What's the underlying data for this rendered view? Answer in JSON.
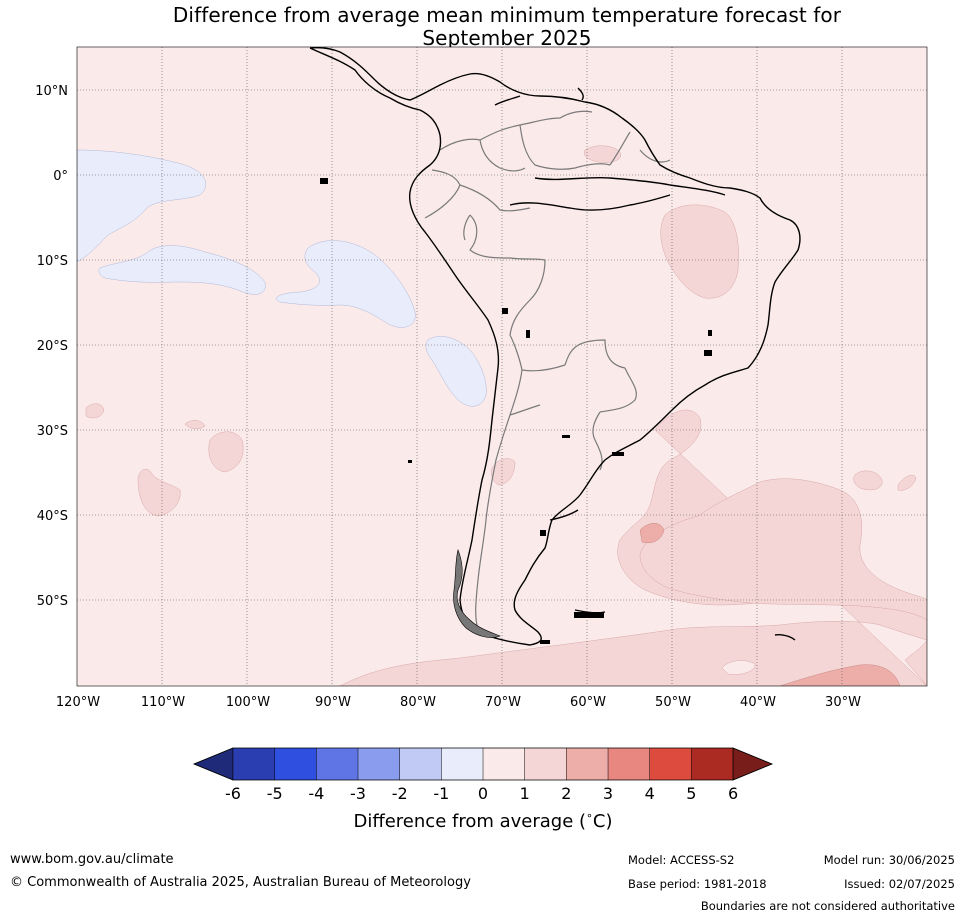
{
  "title": {
    "line1": "Difference from average mean minimum temperature forecast for",
    "line2": "September 2025"
  },
  "map": {
    "lat_labels": [
      "10°N",
      "0°",
      "10°S",
      "20°S",
      "30°S",
      "40°S",
      "50°S"
    ],
    "lon_labels": [
      "120°W",
      "110°W",
      "100°W",
      "90°W",
      "80°W",
      "70°W",
      "60°W",
      "50°W",
      "40°W",
      "30°W"
    ],
    "colors": {
      "below_0_to_1": "#e8ecfb",
      "above_0_to_1": "#fbeaea",
      "above_1_to_2": "#f5d6d6",
      "above_2_to_3": "#edaeaa",
      "coast": "#000000",
      "borders": "#808080"
    }
  },
  "colorbar": {
    "ticks": [
      "-6",
      "-5",
      "-4",
      "-3",
      "-2",
      "-1",
      "0",
      "1",
      "2",
      "3",
      "4",
      "5",
      "6"
    ],
    "colors": [
      "#1f2a78",
      "#2a3eb1",
      "#2e4fe0",
      "#5f75e6",
      "#8a9cee",
      "#c1c9f5",
      "#e8ecfb",
      "#fbeaea",
      "#f5d6d6",
      "#edaeaa",
      "#e88680",
      "#dd4b3f",
      "#ab2b22",
      "#781d1a"
    ],
    "label": "Difference from average ($^\\circ$C)",
    "label_text": "Difference from average (",
    "label_unit": "C)"
  },
  "footer": {
    "website": "www.bom.gov.au/climate",
    "copyright": "© Commonwealth of Australia 2025, Australian Bureau of Meteorology",
    "model": "Model: ACCESS-S2",
    "base_period": "Base period: 1981-2018",
    "model_run": "Model run: 30/06/2025",
    "issued": "Issued: 02/07/2025",
    "disclaimer": "Boundaries are not considered authoritative"
  }
}
